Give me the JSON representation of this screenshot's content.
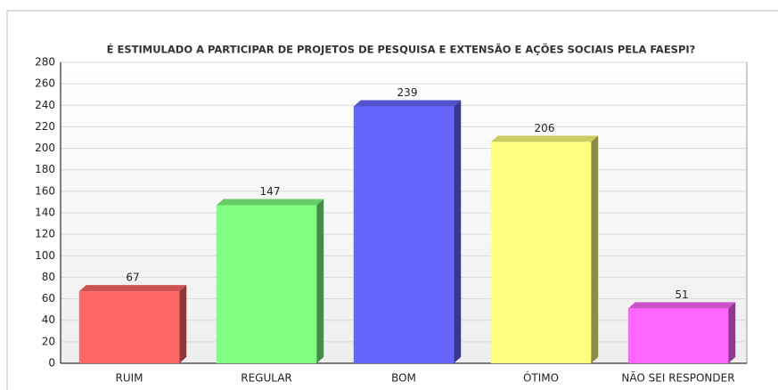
{
  "chart_data": {
    "type": "bar3d",
    "title": "É ESTIMULADO A PARTICIPAR DE PROJETOS DE PESQUISA E EXTENSÃO E AÇÕES SOCIAIS PELA FAESPI?",
    "categories": [
      "RUIM",
      "REGULAR",
      "BOM",
      "ÓTIMO",
      "NÃO SEI RESPONDER"
    ],
    "values": [
      67,
      147,
      239,
      206,
      51
    ],
    "colors": [
      "#ff6666",
      "#80ff80",
      "#6666ff",
      "#ffff80",
      "#ff66ff"
    ],
    "ylim": [
      0,
      280
    ],
    "yticks": [
      0,
      20,
      40,
      60,
      80,
      100,
      120,
      140,
      160,
      180,
      200,
      220,
      240,
      260,
      280
    ],
    "grid": true
  }
}
